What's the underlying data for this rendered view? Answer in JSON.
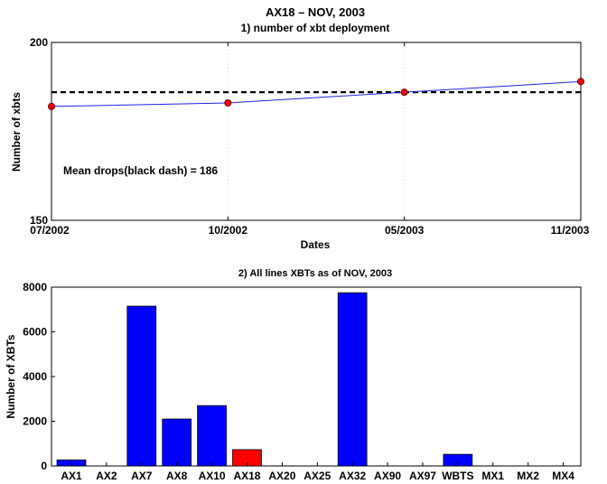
{
  "figure": {
    "title_line1": "AX18 – NOV, 2003",
    "background": "#ffffff"
  },
  "chart_data": [
    {
      "type": "line",
      "title": "1) number of xbt deployment",
      "xlabel": "Dates",
      "ylabel": "Number of xbts",
      "x": [
        "07/2002",
        "10/2002",
        "05/2003",
        "11/2003"
      ],
      "x_ticks": [
        "07/2002",
        "10/2002",
        "05/2003",
        "11/2003"
      ],
      "ylim": [
        150,
        200
      ],
      "y_ticks": [
        "150",
        "200"
      ],
      "series": [
        {
          "values": [
            182,
            183,
            186,
            189
          ],
          "color": "#2222ee",
          "marker_color": "#ee0000"
        }
      ],
      "reference_line": {
        "value": 186,
        "style": "dashed",
        "color": "#000000"
      },
      "annotation": "Mean drops(black dash) = 186",
      "grid": "vertical dotted at x ticks"
    },
    {
      "type": "bar",
      "title": "2) All lines XBTs as of NOV, 2003",
      "xlabel": "",
      "ylabel": "Number of XBTs",
      "categories": [
        "AX1",
        "AX2",
        "AX7",
        "AX8",
        "AX10",
        "AX18",
        "AX20",
        "AX25",
        "AX32",
        "AX90",
        "AX97",
        "WBTS",
        "MX1",
        "MX2",
        "MX4"
      ],
      "values": [
        270,
        0,
        7150,
        2100,
        2700,
        730,
        0,
        0,
        7750,
        0,
        0,
        520,
        0,
        0,
        0
      ],
      "highlight": "AX18",
      "bar_color": "#0000ff",
      "highlight_color": "#ff0000",
      "ylim": [
        0,
        8000
      ],
      "y_ticks": [
        "0",
        "2000",
        "4000",
        "6000",
        "8000"
      ]
    }
  ]
}
